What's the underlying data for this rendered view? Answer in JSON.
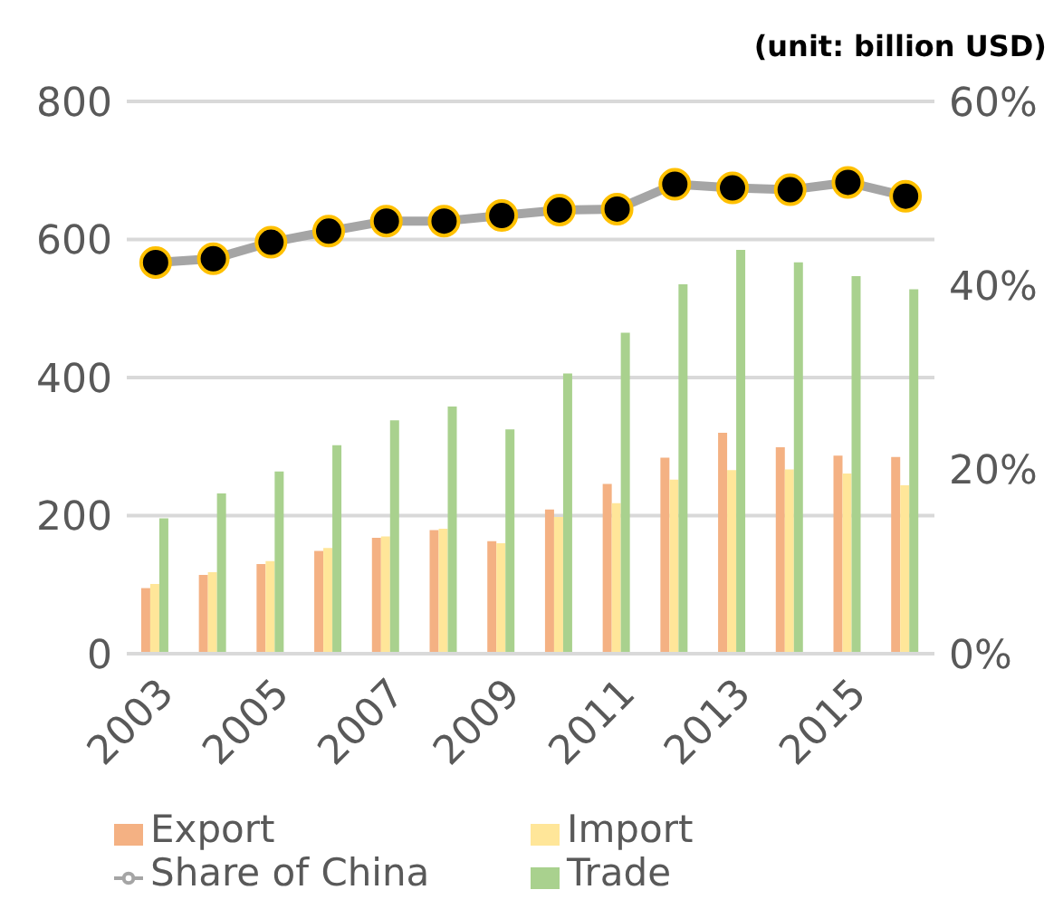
{
  "chart_data": {
    "type": "bar",
    "annotations": [
      "(unit: billion USD)"
    ],
    "categories": [
      "2003",
      null,
      "2005",
      null,
      "2007",
      null,
      "2009",
      null,
      "2011",
      null,
      "2013",
      null,
      "2015",
      null
    ],
    "series": [
      {
        "name": "Export",
        "color": "#f4b183",
        "values": [
          95,
          114,
          130,
          149,
          168,
          179,
          163,
          209,
          246,
          284,
          320,
          299,
          287,
          285
        ]
      },
      {
        "name": "Import",
        "color": "#ffe699",
        "values": [
          101,
          118,
          134,
          153,
          170,
          181,
          160,
          198,
          218,
          252,
          266,
          267,
          261,
          244
        ]
      },
      {
        "name": "Trade",
        "color": "#a9d18e",
        "values": [
          196,
          232,
          264,
          302,
          338,
          358,
          325,
          406,
          465,
          535,
          585,
          567,
          547,
          528
        ]
      },
      {
        "name": "Share of China",
        "type": "line",
        "axis": "y2",
        "color": "#a5a5a5",
        "values": [
          42.5,
          42.9,
          44.7,
          45.9,
          47.0,
          47.0,
          47.6,
          48.2,
          48.3,
          51.0,
          50.6,
          50.4,
          51.2,
          49.7
        ]
      }
    ],
    "ylim": [
      0,
      800
    ],
    "yticks": [
      0,
      200,
      400,
      600,
      800
    ],
    "y2lim": [
      0,
      60
    ],
    "y2ticks": [
      {
        "value": 0,
        "label": "0%"
      },
      {
        "value": 20,
        "label": "20%"
      },
      {
        "value": 40,
        "label": "40%"
      },
      {
        "value": 60,
        "label": "60%"
      }
    ],
    "grid": "y",
    "legend": "bottom",
    "marker": "circle"
  }
}
